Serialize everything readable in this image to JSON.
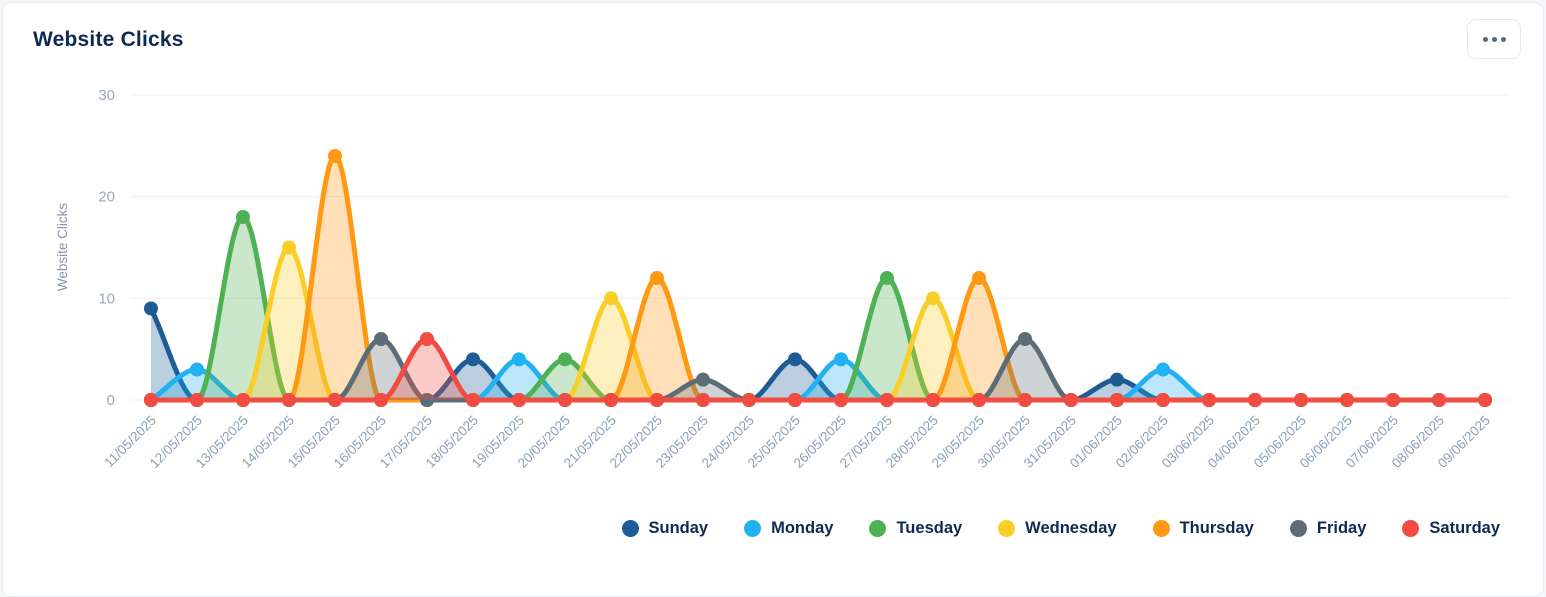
{
  "header": {
    "title": "Website Clicks"
  },
  "colors": {
    "title_text": "#0d2b52",
    "legend_text": "#0d2b52",
    "axis_tick_text": "#9aa8bc",
    "date_label_text": "#8da0b8",
    "grid_line": "#efefef"
  },
  "chart_data": {
    "type": "area",
    "title": "Website Clicks",
    "xlabel": "",
    "ylabel": "Website Clicks",
    "ylim": [
      0,
      30
    ],
    "y_ticks": [
      0,
      10,
      20,
      30
    ],
    "grid": "horizontal",
    "legend_position": "bottom-right",
    "categories": [
      "11/05/2025",
      "12/05/2025",
      "13/05/2025",
      "14/05/2025",
      "15/05/2025",
      "16/05/2025",
      "17/05/2025",
      "18/05/2025",
      "19/05/2025",
      "20/05/2025",
      "21/05/2025",
      "22/05/2025",
      "23/05/2025",
      "24/05/2025",
      "25/05/2025",
      "26/05/2025",
      "27/05/2025",
      "28/05/2025",
      "29/05/2025",
      "30/05/2025",
      "31/05/2025",
      "01/06/2025",
      "02/06/2025",
      "03/06/2025",
      "04/06/2025",
      "05/06/2025",
      "06/06/2025",
      "07/06/2025",
      "08/06/2025",
      "09/06/2025"
    ],
    "series": [
      {
        "name": "Sunday",
        "color": "#1d5c94",
        "values": [
          9,
          0,
          0,
          0,
          0,
          0,
          0,
          4,
          0,
          0,
          0,
          0,
          0,
          0,
          4,
          0,
          0,
          0,
          0,
          0,
          0,
          2,
          0,
          0,
          0,
          0,
          0,
          0,
          0,
          0
        ]
      },
      {
        "name": "Monday",
        "color": "#22b1f2",
        "values": [
          0,
          3,
          0,
          0,
          0,
          0,
          0,
          0,
          4,
          0,
          0,
          0,
          0,
          0,
          0,
          4,
          0,
          0,
          0,
          0,
          0,
          0,
          3,
          0,
          0,
          0,
          0,
          0,
          0,
          0
        ]
      },
      {
        "name": "Tuesday",
        "color": "#4eb153",
        "values": [
          0,
          0,
          18,
          0,
          0,
          0,
          0,
          0,
          0,
          4,
          0,
          0,
          0,
          0,
          0,
          0,
          12,
          0,
          0,
          0,
          0,
          0,
          0,
          0,
          0,
          0,
          0,
          0,
          0,
          0
        ]
      },
      {
        "name": "Wednesday",
        "color": "#f9ce27",
        "values": [
          0,
          0,
          0,
          15,
          0,
          0,
          0,
          0,
          0,
          0,
          10,
          0,
          0,
          0,
          0,
          0,
          0,
          10,
          0,
          0,
          0,
          0,
          0,
          0,
          0,
          0,
          0,
          0,
          0,
          0
        ]
      },
      {
        "name": "Thursday",
        "color": "#ff9913",
        "values": [
          0,
          0,
          0,
          0,
          24,
          0,
          0,
          0,
          0,
          0,
          0,
          12,
          0,
          0,
          0,
          0,
          0,
          0,
          12,
          0,
          0,
          0,
          0,
          0,
          0,
          0,
          0,
          0,
          0,
          0
        ]
      },
      {
        "name": "Friday",
        "color": "#5d6d78",
        "values": [
          0,
          0,
          0,
          0,
          0,
          6,
          0,
          0,
          0,
          0,
          0,
          0,
          2,
          0,
          0,
          0,
          0,
          0,
          0,
          6,
          0,
          0,
          0,
          0,
          0,
          0,
          0,
          0,
          0,
          0
        ]
      },
      {
        "name": "Saturday",
        "color": "#f24b42",
        "values": [
          0,
          0,
          0,
          0,
          0,
          0,
          6,
          0,
          0,
          0,
          0,
          0,
          0,
          0,
          0,
          0,
          0,
          0,
          0,
          0,
          0,
          0,
          0,
          0,
          0,
          0,
          0,
          0,
          0,
          0
        ]
      }
    ]
  }
}
